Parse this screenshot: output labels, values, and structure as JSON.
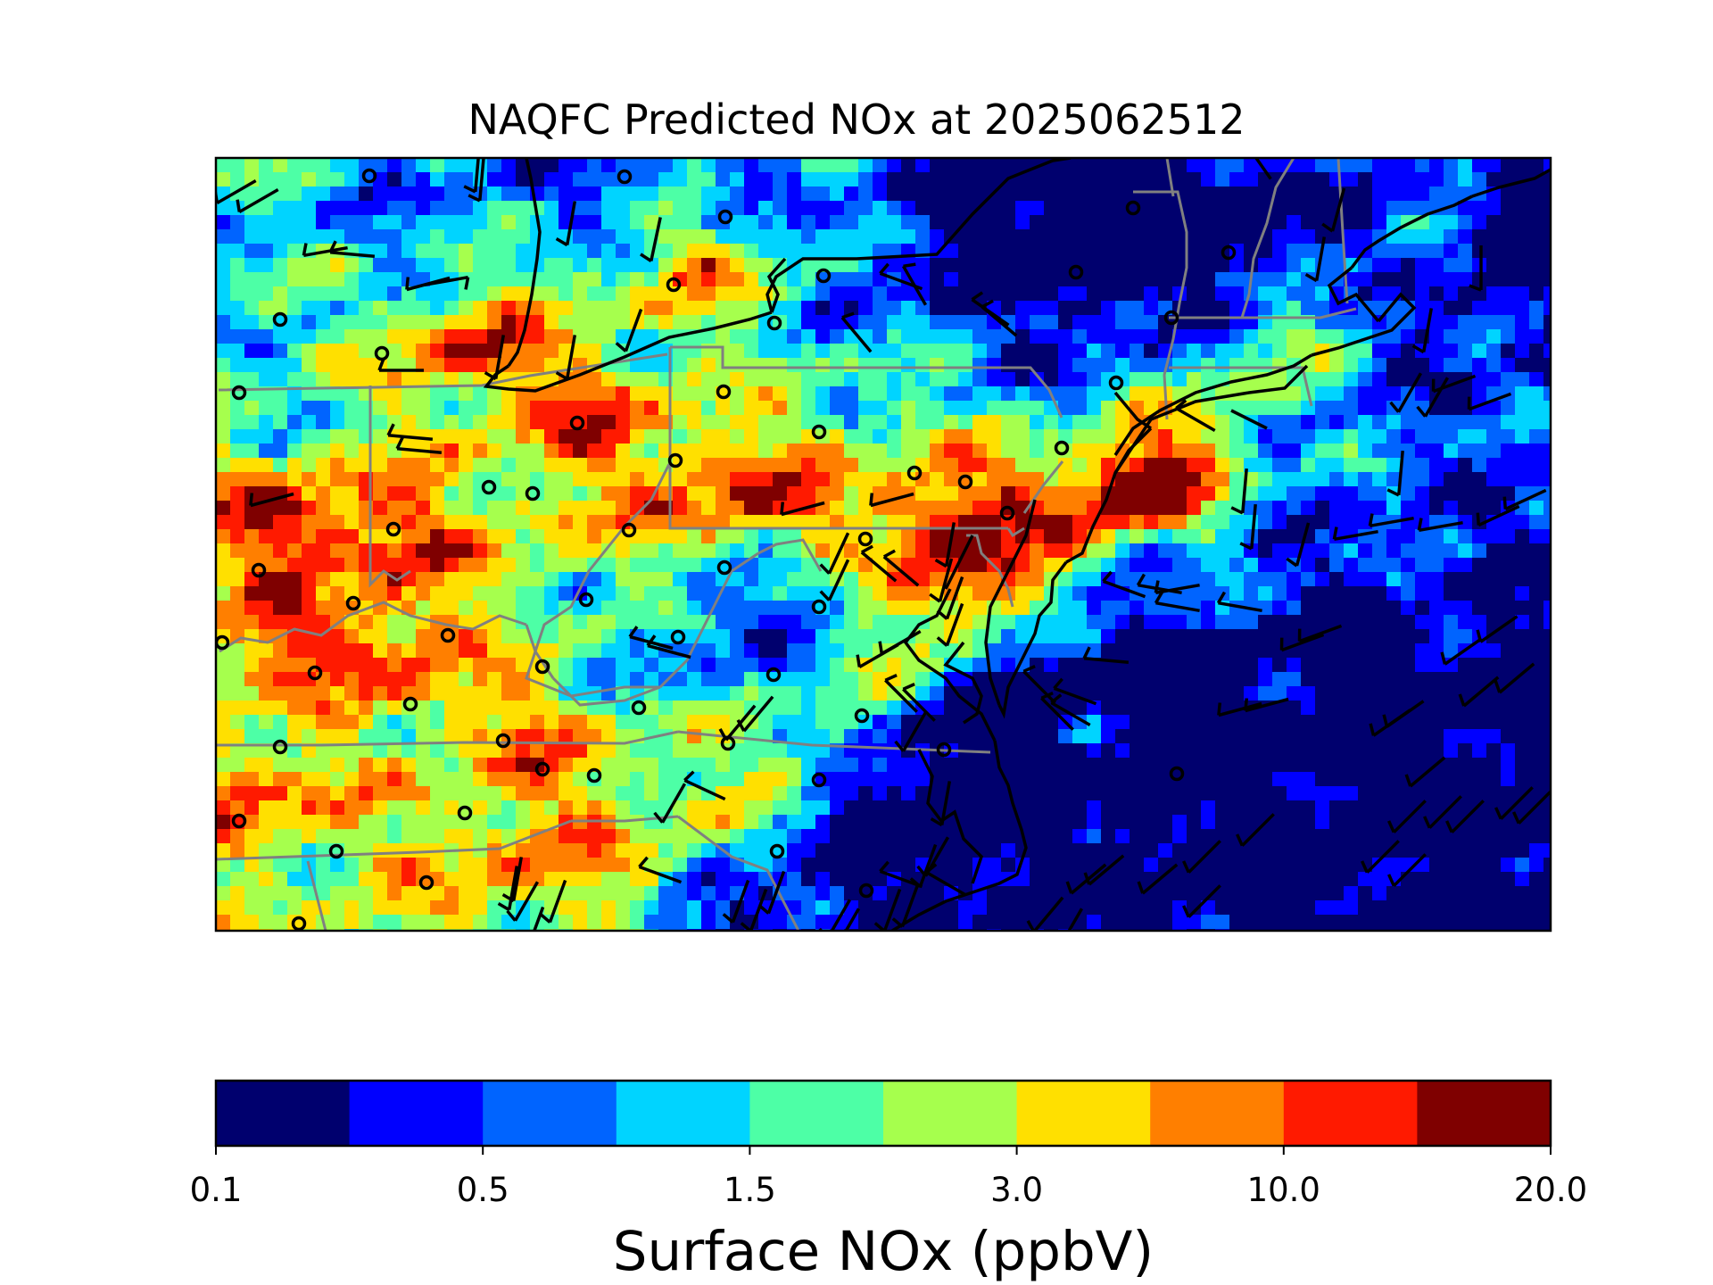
{
  "title": "NAQFC Predicted NOx at 2025062512",
  "colorbar": {
    "label": "Surface NOx (ppbV)",
    "tick_labels": [
      "0.1",
      "0.5",
      "1.5",
      "3.0",
      "10.0",
      "20.0"
    ],
    "colors": [
      "#00006e",
      "#0000ff",
      "#0064ff",
      "#00d4ff",
      "#4dffa6",
      "#a6ff4d",
      "#ffe000",
      "#ff7f00",
      "#ff1a00",
      "#7f0000"
    ]
  },
  "map_colors": {
    "state_borders": "#808080",
    "coastline": "#000000",
    "stations": "#000000",
    "wind_barbs": "#000000"
  }
}
